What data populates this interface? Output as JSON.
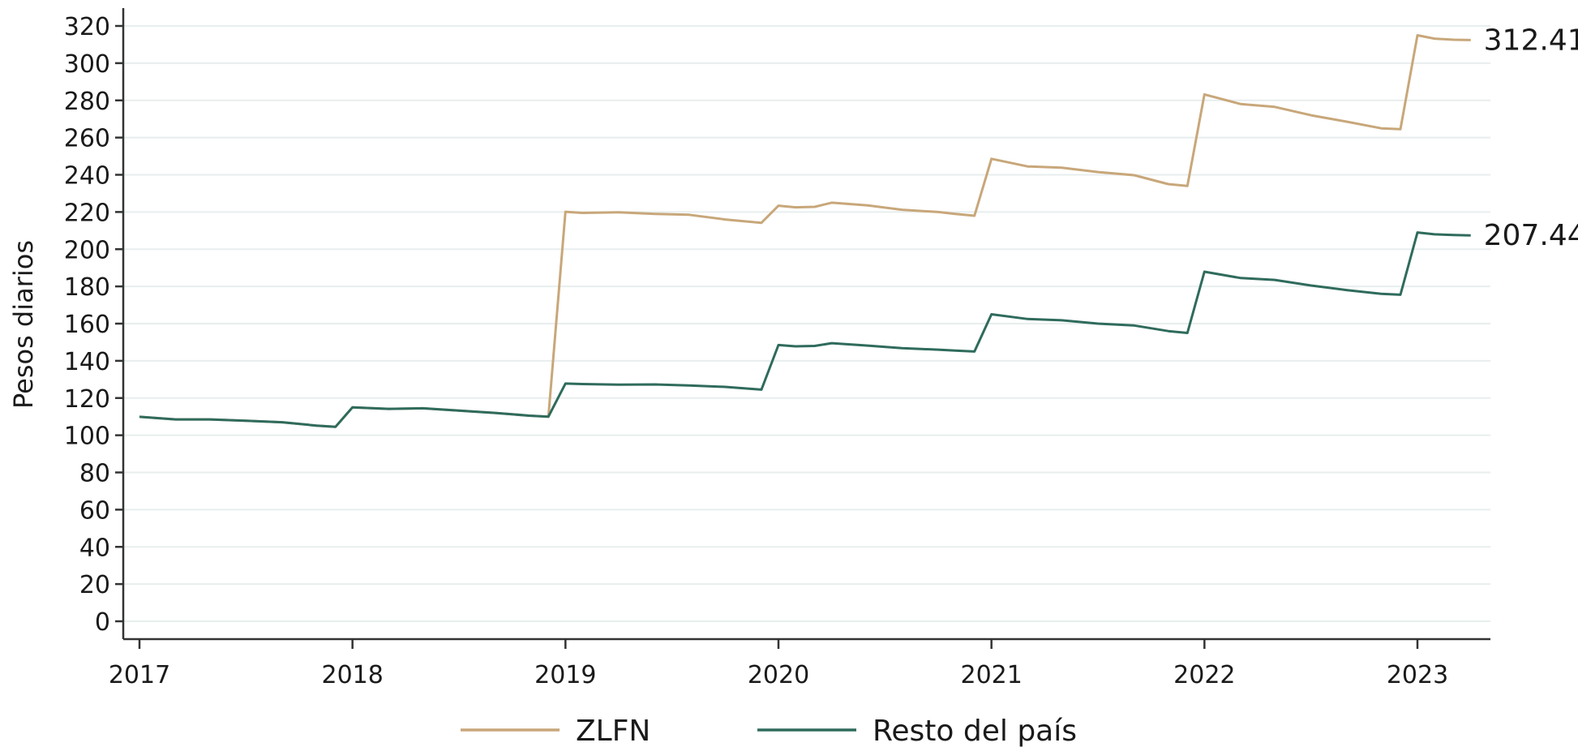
{
  "chart_data": {
    "type": "line",
    "ylabel": "Pesos diarios",
    "xlabel": "",
    "ylim": [
      0,
      320
    ],
    "y_ticks": [
      0,
      20,
      40,
      60,
      80,
      100,
      120,
      140,
      160,
      180,
      200,
      220,
      240,
      260,
      280,
      300,
      320
    ],
    "xlim": [
      2017,
      2023.33
    ],
    "x_ticks": [
      2017,
      2018,
      2019,
      2020,
      2021,
      2022,
      2023
    ],
    "x_tick_labels": [
      "2017",
      "2018",
      "2019",
      "2020",
      "2021",
      "2022",
      "2023"
    ],
    "grid": "horizontal",
    "legend_position": "bottom",
    "series": [
      {
        "name": "ZLFN",
        "color": "#c8a77a",
        "end_label": "312.41",
        "x": [
          2017.0,
          2017.17,
          2017.33,
          2017.5,
          2017.67,
          2017.83,
          2017.92,
          2018.0,
          2018.17,
          2018.33,
          2018.5,
          2018.67,
          2018.83,
          2018.92,
          2019.0,
          2019.08,
          2019.25,
          2019.42,
          2019.58,
          2019.75,
          2019.92,
          2020.0,
          2020.08,
          2020.17,
          2020.25,
          2020.42,
          2020.58,
          2020.75,
          2020.83,
          2020.92,
          2021.0,
          2021.17,
          2021.33,
          2021.5,
          2021.67,
          2021.83,
          2021.92,
          2022.0,
          2022.17,
          2022.33,
          2022.5,
          2022.67,
          2022.83,
          2022.92,
          2023.0,
          2023.08,
          2023.17,
          2023.25
        ],
        "y": [
          109.9,
          108.5,
          108.5,
          107.8,
          107.0,
          105.2,
          104.5,
          115.0,
          114.2,
          114.5,
          113.2,
          112.0,
          110.5,
          110.0,
          220.1,
          219.5,
          219.8,
          219.0,
          218.5,
          216.0,
          214.2,
          223.4,
          222.5,
          222.8,
          225.0,
          223.5,
          221.2,
          220.0,
          219.0,
          218.0,
          248.6,
          244.5,
          243.8,
          241.5,
          239.8,
          235.0,
          234.0,
          283.2,
          278.0,
          276.5,
          272.0,
          268.5,
          265.0,
          264.5,
          315.0,
          313.2,
          312.6,
          312.41
        ]
      },
      {
        "name": "Resto del país",
        "color": "#2f6b5c",
        "end_label": "207.44",
        "x": [
          2017.0,
          2017.17,
          2017.33,
          2017.5,
          2017.67,
          2017.83,
          2017.92,
          2018.0,
          2018.17,
          2018.33,
          2018.5,
          2018.67,
          2018.83,
          2018.92,
          2019.0,
          2019.08,
          2019.25,
          2019.42,
          2019.58,
          2019.75,
          2019.92,
          2020.0,
          2020.08,
          2020.17,
          2020.25,
          2020.42,
          2020.58,
          2020.75,
          2020.83,
          2020.92,
          2021.0,
          2021.17,
          2021.33,
          2021.5,
          2021.67,
          2021.83,
          2021.92,
          2022.0,
          2022.17,
          2022.33,
          2022.5,
          2022.67,
          2022.83,
          2022.92,
          2023.0,
          2023.08,
          2023.17,
          2023.25
        ],
        "y": [
          109.9,
          108.5,
          108.5,
          107.8,
          107.0,
          105.2,
          104.5,
          115.0,
          114.2,
          114.5,
          113.2,
          112.0,
          110.5,
          110.0,
          127.8,
          127.5,
          127.2,
          127.3,
          126.8,
          126.0,
          124.5,
          148.5,
          147.8,
          148.0,
          149.5,
          148.2,
          146.8,
          146.0,
          145.5,
          145.0,
          165.0,
          162.5,
          161.8,
          160.0,
          159.0,
          156.0,
          155.0,
          187.9,
          184.5,
          183.5,
          180.5,
          178.0,
          176.0,
          175.5,
          209.0,
          208.0,
          207.6,
          207.44
        ]
      }
    ]
  }
}
